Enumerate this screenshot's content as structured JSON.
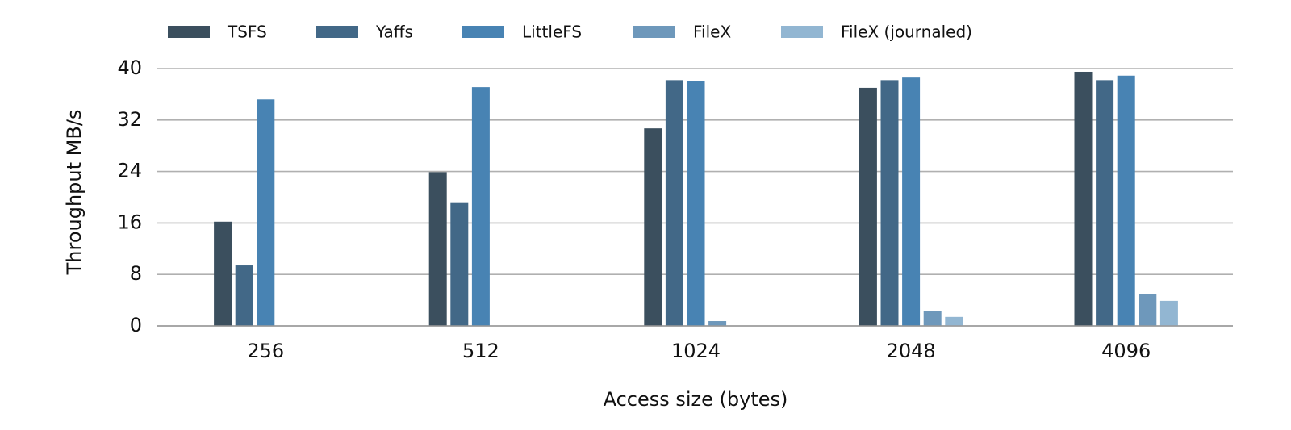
{
  "chart_data": {
    "type": "bar",
    "categories": [
      "256",
      "512",
      "1024",
      "2048",
      "4096"
    ],
    "x_label": "Access size (bytes)",
    "y_label": "Throughput MB/s",
    "series": [
      {
        "name": "TSFS",
        "color": "#3b4f5e",
        "values": [
          16.2,
          23.9,
          30.7,
          37.0,
          39.5
        ]
      },
      {
        "name": "Yaffs",
        "color": "#426887",
        "values": [
          9.4,
          19.1,
          38.2,
          38.2,
          38.2
        ]
      },
      {
        "name": "LittleFS",
        "color": "#4883b3",
        "values": [
          35.2,
          37.1,
          38.1,
          38.6,
          38.9
        ]
      },
      {
        "name": "FileX",
        "color": "#6e98bb",
        "values": [
          0,
          0,
          0.75,
          2.3,
          4.9
        ]
      },
      {
        "name": "FileX (journaled)",
        "color": "#92b6d2",
        "values": [
          0,
          0,
          0,
          1.4,
          3.9
        ]
      }
    ],
    "ylim": [
      0,
      40
    ],
    "yticks": [
      0,
      8,
      16,
      24,
      32,
      40
    ],
    "grid": true,
    "legend": "top"
  }
}
